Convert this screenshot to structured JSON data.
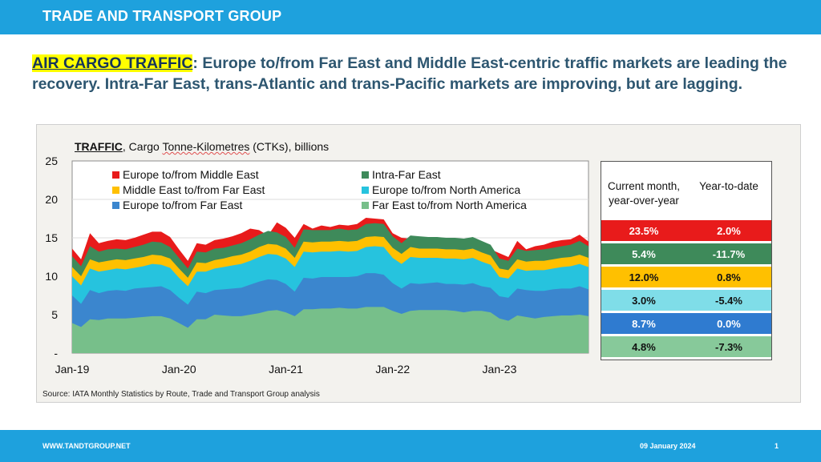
{
  "header": {
    "brand": "TRADE AND TRANSPORT GROUP"
  },
  "headline": {
    "tag": "AIR CARGO TRAFFIC",
    "colon": ":",
    "text": "  Europe to/from Far East and Middle East-centric traffic markets are leading the recovery.  Intra-Far East, trans-Atlantic and trans-Pacific markets are improving, but are lagging."
  },
  "chart_title": {
    "bold": "TRAFFIC",
    "pre": ", Cargo ",
    "squiggle": "Tonne-Kilometres",
    "post": " (CTKs), billions"
  },
  "source": "Source: IATA Monthly Statistics by Route, Trade and Transport Group analysis",
  "chart_data": {
    "type": "area",
    "stacked": true,
    "ylim": [
      0,
      25
    ],
    "yticks": [
      "-",
      "5",
      "10",
      "15",
      "20",
      "25"
    ],
    "x_tick_labels": [
      "Jan-19",
      "Jan-20",
      "Jan-21",
      "Jan-22",
      "Jan-23"
    ],
    "x_tick_months": [
      0,
      12,
      24,
      36,
      48
    ],
    "months": 59,
    "colors": {
      "Far East to/from North America": "#77bf8a",
      "Europe to/from Far East": "#3b86ce",
      "Europe to/from North America": "#26c3de",
      "Middle East to/from Far East": "#ffc000",
      "Intra-Far East": "#3e8a5a",
      "Europe to/from Middle East": "#e81b1b"
    },
    "legend_order": [
      "Europe to/from Middle East",
      "Intra-Far East",
      "Middle East to/from Far East",
      "Europe to/from North America",
      "Europe to/from Far East",
      "Far East to/from North America"
    ],
    "cumulative_tops": {
      "Far East to/from North America": [
        3.9,
        3.4,
        4.4,
        4.3,
        4.5,
        4.5,
        4.5,
        4.6,
        4.7,
        4.8,
        4.8,
        4.5,
        3.9,
        3.3,
        4.4,
        4.4,
        5.0,
        4.9,
        4.8,
        4.8,
        5.0,
        5.2,
        5.5,
        5.6,
        5.3,
        4.8,
        5.7,
        5.7,
        5.8,
        5.8,
        5.9,
        5.8,
        5.8,
        6.0,
        6.0,
        6.0,
        5.5,
        5.1,
        5.5,
        5.6,
        5.6,
        5.6,
        5.6,
        5.5,
        5.3,
        5.5,
        5.5,
        5.3,
        4.5,
        4.2,
        4.9,
        4.7,
        4.5,
        4.7,
        4.8,
        4.9,
        4.9,
        5.0,
        4.8
      ],
      "Europe to/from Far East": [
        7.5,
        6.4,
        8.2,
        7.8,
        8.1,
        8.2,
        8.1,
        8.4,
        8.5,
        8.6,
        8.7,
        8.2,
        7.2,
        6.3,
        8.0,
        7.8,
        8.2,
        8.3,
        8.4,
        8.5,
        8.9,
        9.3,
        9.6,
        9.5,
        9.0,
        8.0,
        9.8,
        9.7,
        9.9,
        9.9,
        9.9,
        9.9,
        10.0,
        10.4,
        10.4,
        10.2,
        9.1,
        8.4,
        9.1,
        9.0,
        9.1,
        9.2,
        9.0,
        9.0,
        8.9,
        9.1,
        8.7,
        8.5,
        7.4,
        7.2,
        8.4,
        8.2,
        8.1,
        8.1,
        8.3,
        8.4,
        8.4,
        8.7,
        8.3
      ],
      "Europe to/from North America": [
        10.0,
        8.8,
        11.0,
        10.6,
        10.8,
        11.0,
        10.9,
        11.1,
        11.3,
        11.6,
        11.5,
        11.1,
        9.8,
        8.7,
        10.6,
        10.6,
        11.0,
        11.2,
        11.4,
        11.6,
        12.0,
        12.5,
        12.9,
        12.8,
        12.3,
        11.2,
        13.2,
        13.1,
        13.2,
        13.2,
        13.3,
        13.2,
        13.3,
        13.8,
        13.9,
        13.8,
        12.4,
        11.6,
        12.5,
        12.4,
        12.4,
        12.4,
        12.3,
        12.3,
        12.2,
        12.4,
        11.9,
        11.5,
        9.9,
        9.7,
        11.0,
        10.7,
        10.8,
        10.8,
        11.0,
        11.2,
        11.3,
        11.6,
        11.2
      ],
      "Middle East to/from Far East": [
        11.2,
        10.0,
        12.2,
        11.8,
        12.0,
        12.2,
        12.1,
        12.3,
        12.5,
        12.8,
        12.7,
        12.3,
        11.0,
        9.8,
        11.8,
        11.7,
        12.1,
        12.3,
        12.6,
        12.8,
        13.2,
        13.8,
        14.2,
        14.1,
        13.6,
        12.4,
        14.5,
        14.4,
        14.5,
        14.5,
        14.6,
        14.5,
        14.6,
        15.1,
        15.2,
        15.1,
        13.7,
        12.9,
        13.8,
        13.6,
        13.6,
        13.6,
        13.5,
        13.5,
        13.4,
        13.6,
        13.1,
        12.7,
        11.0,
        10.8,
        12.2,
        11.9,
        12.0,
        12.0,
        12.2,
        12.4,
        12.5,
        12.8,
        12.4
      ],
      "Intra-Far East": [
        12.6,
        11.3,
        13.9,
        13.2,
        13.5,
        13.6,
        13.5,
        13.8,
        14.1,
        14.5,
        14.4,
        13.8,
        12.4,
        11.0,
        13.2,
        13.1,
        13.6,
        13.7,
        14.0,
        14.3,
        14.8,
        15.4,
        15.9,
        15.7,
        15.1,
        13.7,
        16.1,
        16.0,
        16.0,
        16.0,
        16.2,
        16.0,
        16.1,
        16.8,
        16.9,
        16.8,
        15.2,
        14.3,
        15.3,
        15.2,
        15.1,
        15.1,
        15.0,
        15.0,
        14.9,
        15.1,
        14.6,
        14.1,
        12.3,
        12.0,
        13.6,
        13.3,
        13.4,
        13.5,
        13.7,
        13.9,
        14.1,
        14.6,
        13.9
      ],
      "Europe to/from Middle East": [
        13.6,
        12.2,
        15.6,
        14.3,
        14.6,
        14.8,
        14.7,
        15.0,
        15.4,
        15.8,
        15.8,
        15.1,
        13.5,
        12.0,
        14.3,
        14.1,
        14.7,
        14.9,
        15.2,
        15.6,
        16.2,
        16.0,
        15.3,
        17.0,
        16.3,
        15.0,
        16.8,
        16.2,
        16.6,
        16.4,
        16.7,
        16.6,
        16.8,
        17.6,
        17.5,
        17.4,
        15.6,
        15.0,
        14.9,
        14.7,
        14.7,
        14.8,
        14.7,
        14.6,
        14.5,
        14.6,
        14.0,
        13.5,
        13.0,
        12.5,
        14.6,
        13.5,
        13.9,
        14.1,
        14.5,
        14.7,
        14.8,
        15.4,
        14.5
      ]
    },
    "table": {
      "headers": [
        "Current month, year-over-year",
        "Year-to-date"
      ],
      "rows": [
        {
          "series": "Europe to/from Middle East",
          "ytd_month": "23.5%",
          "ytd": "2.0%",
          "bg": "#e81b1b",
          "fg": "#ffffff"
        },
        {
          "series": "Intra-Far East",
          "ytd_month": "5.4%",
          "ytd": "-11.7%",
          "bg": "#3e8a5a",
          "fg": "#ffffff"
        },
        {
          "series": "Middle East to/from Far East",
          "ytd_month": "12.0%",
          "ytd": "0.8%",
          "bg": "#ffc000",
          "fg": "#111111"
        },
        {
          "series": "Europe to/from North America",
          "ytd_month": "3.0%",
          "ytd": "-5.4%",
          "bg": "#7fdde8",
          "fg": "#111111"
        },
        {
          "series": "Europe to/from Far East",
          "ytd_month": "8.7%",
          "ytd": "0.0%",
          "bg": "#2f7bd0",
          "fg": "#ffffff"
        },
        {
          "series": "Far East to/from North America",
          "ytd_month": "4.8%",
          "ytd": "-7.3%",
          "bg": "#87c99a",
          "fg": "#111111"
        }
      ]
    }
  },
  "footer": {
    "url": "WWW.TANDTGROUP.NET",
    "date": "09 January 2024",
    "page": "1"
  }
}
